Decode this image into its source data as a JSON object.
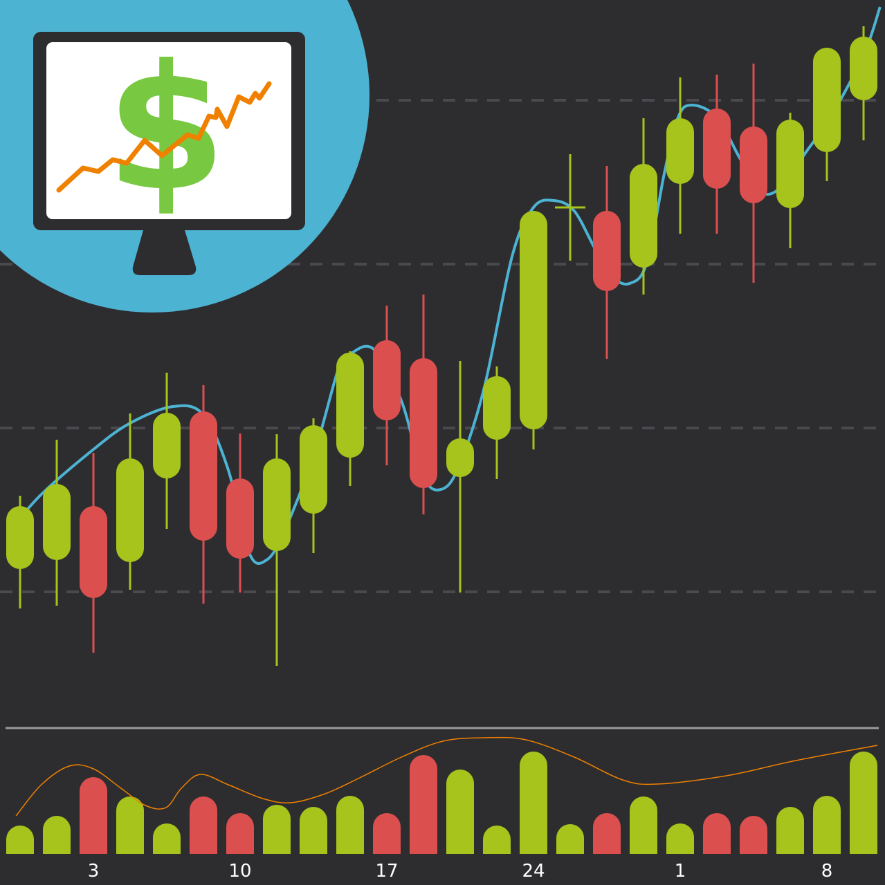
{
  "chart_data": {
    "type": "candlestick",
    "title": "",
    "xlabel": "",
    "ylabel": "",
    "grid": "dashed horizontal",
    "colors": {
      "background": "#2d2d30",
      "up": "#a6c41c",
      "down": "#dc4f4f",
      "moving_average": "#4db3d3",
      "volume_average": "#f08000",
      "divider": "#9a9a9a",
      "badge_circle": "#4db3d3"
    },
    "x_tick_labels": [
      {
        "index": 2,
        "label": "3"
      },
      {
        "index": 6,
        "label": "10"
      },
      {
        "index": 10,
        "label": "17"
      },
      {
        "index": 14,
        "label": "24"
      },
      {
        "index": 18,
        "label": "1"
      },
      {
        "index": 22,
        "label": "8"
      }
    ],
    "candles": [
      {
        "open": 17.7,
        "close": 26.8,
        "high": 28.3,
        "low": 12.0
      },
      {
        "open": 19.0,
        "close": 30.0,
        "high": 36.4,
        "low": 12.4
      },
      {
        "open": 26.8,
        "close": 13.5,
        "high": 34.5,
        "low": 5.6
      },
      {
        "open": 18.7,
        "close": 33.7,
        "high": 40.2,
        "low": 14.7
      },
      {
        "open": 30.8,
        "close": 40.3,
        "high": 46.1,
        "low": 23.5
      },
      {
        "open": 40.5,
        "close": 21.8,
        "high": 44.3,
        "low": 12.7
      },
      {
        "open": 30.8,
        "close": 19.2,
        "high": 37.3,
        "low": 14.3
      },
      {
        "open": 20.3,
        "close": 33.7,
        "high": 37.2,
        "low": 3.7
      },
      {
        "open": 25.7,
        "close": 38.5,
        "high": 39.5,
        "low": 20.0
      },
      {
        "open": 33.8,
        "close": 49.0,
        "high": 49.2,
        "low": 29.7
      },
      {
        "open": 50.8,
        "close": 39.2,
        "high": 55.8,
        "low": 32.7
      },
      {
        "open": 48.2,
        "close": 29.4,
        "high": 57.4,
        "low": 25.6
      },
      {
        "open": 31.0,
        "close": 36.6,
        "high": 47.8,
        "low": 14.3
      },
      {
        "open": 36.4,
        "close": 45.6,
        "high": 47.0,
        "low": 30.7
      },
      {
        "open": 37.9,
        "close": 69.5,
        "high": 69.5,
        "low": 35.0
      },
      {
        "open": 70.0,
        "close": 70.0,
        "high": 77.7,
        "low": 62.3
      },
      {
        "open": 69.5,
        "close": 57.9,
        "high": 76.0,
        "low": 48.1
      },
      {
        "open": 61.3,
        "close": 76.3,
        "high": 82.9,
        "low": 57.4
      },
      {
        "open": 73.4,
        "close": 82.9,
        "high": 88.8,
        "low": 66.2
      },
      {
        "open": 84.3,
        "close": 72.7,
        "high": 89.2,
        "low": 66.2
      },
      {
        "open": 81.7,
        "close": 70.6,
        "high": 90.8,
        "low": 59.1
      },
      {
        "open": 69.9,
        "close": 82.7,
        "high": 83.7,
        "low": 64.1
      },
      {
        "open": 78.0,
        "close": 93.1,
        "high": 93.1,
        "low": 73.8
      },
      {
        "open": 85.5,
        "close": 94.7,
        "high": 96.2,
        "low": 79.7
      }
    ],
    "volume": [
      41,
      55,
      111,
      83,
      44,
      83,
      59,
      71,
      68,
      84,
      59,
      143,
      122,
      41,
      148,
      43,
      59,
      83,
      44,
      59,
      55,
      68,
      84,
      148
    ],
    "moving_average": [
      [
        -0.32,
        23
      ],
      [
        0.58,
        28.5
      ],
      [
        2,
        35
      ],
      [
        3,
        38.8
      ],
      [
        4.17,
        41.2
      ],
      [
        5,
        40
      ],
      [
        5.68,
        32
      ],
      [
        6.25,
        20
      ],
      [
        6.72,
        19
      ],
      [
        7.19,
        23
      ],
      [
        8,
        34
      ],
      [
        8.7,
        47
      ],
      [
        9,
        48.8
      ],
      [
        9.64,
        49.5
      ],
      [
        10.4,
        42
      ],
      [
        11,
        31
      ],
      [
        11.53,
        29.3
      ],
      [
        12,
        33
      ],
      [
        12.66,
        44
      ],
      [
        13.42,
        63
      ],
      [
        14,
        70
      ],
      [
        14.55,
        71
      ],
      [
        15.11,
        69.5
      ],
      [
        15.68,
        64
      ],
      [
        16.15,
        60
      ],
      [
        16.62,
        59
      ],
      [
        17.09,
        62
      ],
      [
        17.57,
        75
      ],
      [
        17.94,
        83
      ],
      [
        18.32,
        84.8
      ],
      [
        19,
        83
      ],
      [
        19.64,
        77
      ],
      [
        20.21,
        72.2
      ],
      [
        20.77,
        73
      ],
      [
        21.43,
        78
      ],
      [
        22.09,
        83
      ],
      [
        23,
        92
      ],
      [
        23.45,
        99
      ]
    ],
    "volume_average": [
      [
        -0.11,
        55
      ],
      [
        0.58,
        100
      ],
      [
        1.34,
        127
      ],
      [
        2,
        123
      ],
      [
        2.75,
        95
      ],
      [
        3.42,
        70
      ],
      [
        3.98,
        67
      ],
      [
        4.4,
        95
      ],
      [
        4.92,
        115
      ],
      [
        5.68,
        100
      ],
      [
        6.62,
        80
      ],
      [
        7.38,
        74
      ],
      [
        8.32,
        87
      ],
      [
        9.26,
        110
      ],
      [
        10.4,
        140
      ],
      [
        11.53,
        163
      ],
      [
        12.66,
        168
      ],
      [
        13.79,
        165
      ],
      [
        15.11,
        140
      ],
      [
        16.43,
        107
      ],
      [
        17.38,
        101
      ],
      [
        19.26,
        113
      ],
      [
        21.15,
        135
      ],
      [
        23.38,
        157
      ]
    ]
  },
  "illustration": {
    "symbol": "$"
  }
}
